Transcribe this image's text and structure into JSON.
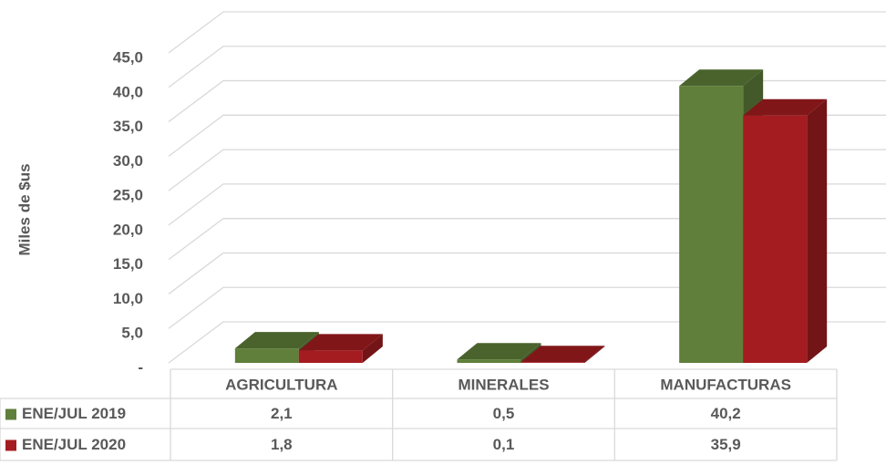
{
  "chart_data": {
    "type": "bar3d",
    "y_label": "Miles de $us",
    "categories": [
      "AGRICULTURA",
      "MINERALES",
      "MANUFACTURAS"
    ],
    "series": [
      {
        "name": "ENE/JUL 2019",
        "color": "#5f7f3a",
        "values": [
          2.1,
          0.5,
          40.2
        ],
        "value_labels": [
          "2,1",
          "0,5",
          "40,2"
        ]
      },
      {
        "name": "ENE/JUL 2020",
        "color": "#a51c20",
        "values": [
          1.8,
          0.1,
          35.9
        ],
        "value_labels": [
          "1,8",
          "0,1",
          "35,9"
        ]
      }
    ],
    "ylim": [
      0,
      45
    ],
    "yticks": [
      {
        "value": 0,
        "label": "-"
      },
      {
        "value": 5,
        "label": "5,0"
      },
      {
        "value": 10,
        "label": "10,0"
      },
      {
        "value": 15,
        "label": "15,0"
      },
      {
        "value": 20,
        "label": "20,0"
      },
      {
        "value": 25,
        "label": "25,0"
      },
      {
        "value": 30,
        "label": "30,0"
      },
      {
        "value": 35,
        "label": "35,0"
      },
      {
        "value": 40,
        "label": "40,0"
      },
      {
        "value": 45,
        "label": "45,0"
      }
    ],
    "grid": true,
    "data_table": true
  }
}
